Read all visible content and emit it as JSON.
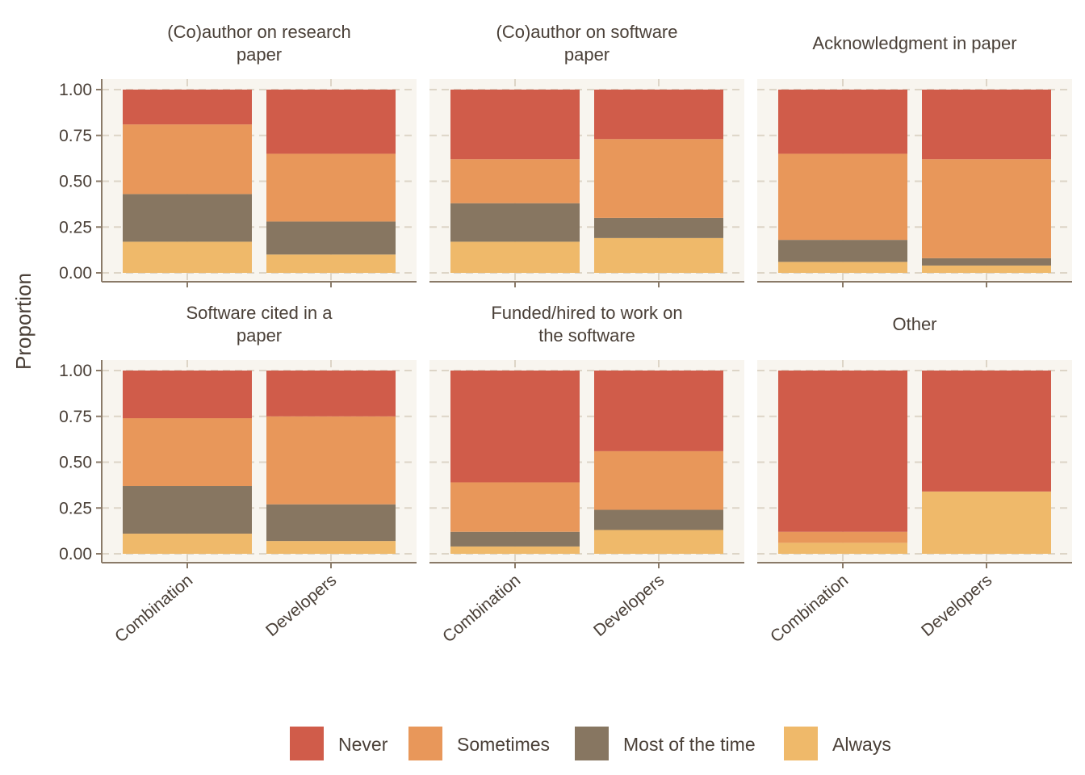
{
  "chart_data": {
    "type": "bar",
    "stacked": true,
    "ylabel": "Proportion",
    "ylim": [
      0,
      1
    ],
    "yticks": [
      "0.00",
      "0.25",
      "0.50",
      "0.75",
      "1.00"
    ],
    "categories": [
      "Combination",
      "Developers"
    ],
    "legend_position": "bottom",
    "legend": [
      "Never",
      "Sometimes",
      "Most of the time",
      "Always"
    ],
    "colors": {
      "Never": "#d05c4a",
      "Sometimes": "#e8975a",
      "Most of the time": "#877661",
      "Always": "#efb96a",
      "panel_bg": "#f8f5ef",
      "grid": "#ddd5c7",
      "axis": "#8a7a68"
    },
    "facets": [
      {
        "title": [
          "(Co)author on research",
          "paper"
        ],
        "bars": {
          "Combination": {
            "Always": 0.17,
            "Most of the time": 0.26,
            "Sometimes": 0.38,
            "Never": 0.19
          },
          "Developers": {
            "Always": 0.1,
            "Most of the time": 0.18,
            "Sometimes": 0.37,
            "Never": 0.35
          }
        }
      },
      {
        "title": [
          "(Co)author on software",
          "paper"
        ],
        "bars": {
          "Combination": {
            "Always": 0.17,
            "Most of the time": 0.21,
            "Sometimes": 0.24,
            "Never": 0.38
          },
          "Developers": {
            "Always": 0.19,
            "Most of the time": 0.11,
            "Sometimes": 0.43,
            "Never": 0.27
          }
        }
      },
      {
        "title": [
          "Acknowledgment in paper"
        ],
        "bars": {
          "Combination": {
            "Always": 0.06,
            "Most of the time": 0.12,
            "Sometimes": 0.47,
            "Never": 0.35
          },
          "Developers": {
            "Always": 0.04,
            "Most of the time": 0.04,
            "Sometimes": 0.54,
            "Never": 0.38
          }
        }
      },
      {
        "title": [
          "Software cited in a",
          "paper"
        ],
        "bars": {
          "Combination": {
            "Always": 0.11,
            "Most of the time": 0.26,
            "Sometimes": 0.37,
            "Never": 0.26
          },
          "Developers": {
            "Always": 0.07,
            "Most of the time": 0.2,
            "Sometimes": 0.48,
            "Never": 0.25
          }
        }
      },
      {
        "title": [
          "Funded/hired to work on",
          "the software"
        ],
        "bars": {
          "Combination": {
            "Always": 0.04,
            "Most of the time": 0.08,
            "Sometimes": 0.27,
            "Never": 0.61
          },
          "Developers": {
            "Always": 0.13,
            "Most of the time": 0.11,
            "Sometimes": 0.32,
            "Never": 0.44
          }
        }
      },
      {
        "title": [
          "Other"
        ],
        "bars": {
          "Combination": {
            "Always": 0.06,
            "Most of the time": 0.0,
            "Sometimes": 0.06,
            "Never": 0.88
          },
          "Developers": {
            "Always": 0.34,
            "Most of the time": 0.0,
            "Sometimes": 0.0,
            "Never": 0.66
          }
        }
      }
    ]
  }
}
